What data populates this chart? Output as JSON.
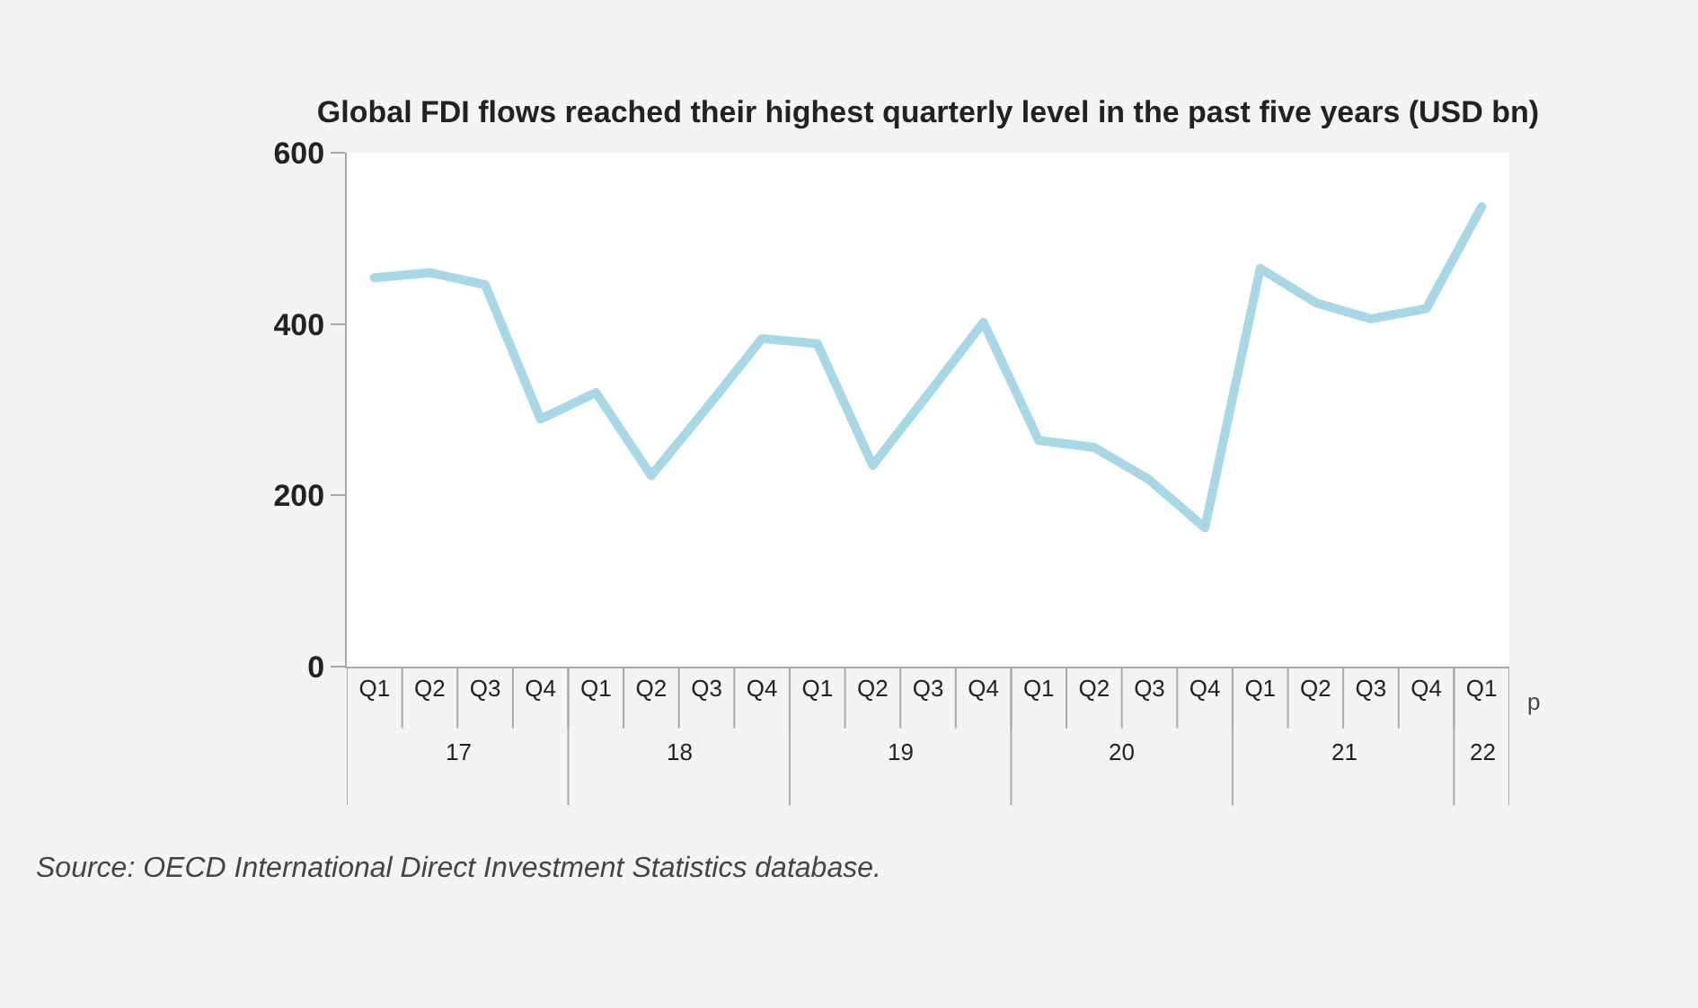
{
  "chart_data": {
    "type": "line",
    "title": "Global FDI flows reached their highest quarterly level in the past five years (USD bn)",
    "categories": [
      "Q1",
      "Q2",
      "Q3",
      "Q4",
      "Q1",
      "Q2",
      "Q3",
      "Q4",
      "Q1",
      "Q2",
      "Q3",
      "Q4",
      "Q1",
      "Q2",
      "Q3",
      "Q4",
      "Q1",
      "Q2",
      "Q3",
      "Q4",
      "Q1"
    ],
    "series": [
      {
        "color": "#a8d8e6",
        "values": [
          454,
          460,
          446,
          289,
          320,
          223,
          302,
          383,
          377,
          235,
          318,
          402,
          264,
          256,
          218,
          162,
          465,
          425,
          406,
          418,
          537
        ]
      }
    ],
    "ylim": [
      0,
      600
    ],
    "yticks": [
      0,
      200,
      400,
      600
    ],
    "grid": false,
    "marker": "none",
    "line_style": "solid",
    "annotations": [
      "17",
      "18",
      "19",
      "20",
      "21",
      "22",
      "p",
      "Source: OECD International Direct Investment Statistics database."
    ]
  }
}
